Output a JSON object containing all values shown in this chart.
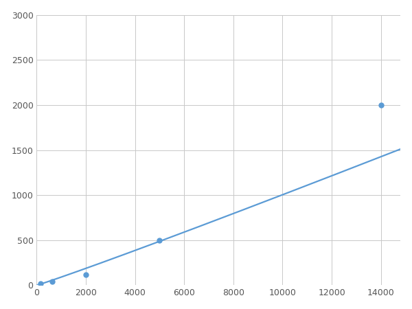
{
  "x_data": [
    156,
    625,
    2000,
    5000,
    14000
  ],
  "y_data": [
    20,
    40,
    120,
    500,
    2000
  ],
  "line_color": "#5B9BD5",
  "marker_color": "#5B9BD5",
  "marker_size": 5,
  "linewidth": 1.6,
  "xlim": [
    0,
    14800
  ],
  "ylim": [
    0,
    3000
  ],
  "xticks": [
    0,
    2000,
    4000,
    6000,
    8000,
    10000,
    12000,
    14000
  ],
  "yticks": [
    0,
    500,
    1000,
    1500,
    2000,
    2500,
    3000
  ],
  "grid_color": "#C8C8C8",
  "background_color": "#FFFFFF",
  "figsize": [
    6.0,
    4.5
  ],
  "dpi": 100
}
